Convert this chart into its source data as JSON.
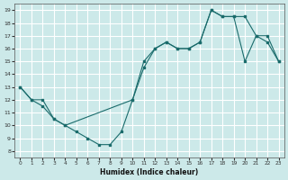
{
  "xlabel": "Humidex (Indice chaleur)",
  "xlim": [
    -0.5,
    23.5
  ],
  "ylim": [
    7.5,
    19.5
  ],
  "yticks": [
    8,
    9,
    10,
    11,
    12,
    13,
    14,
    15,
    16,
    17,
    18,
    19
  ],
  "xticks": [
    0,
    1,
    2,
    3,
    4,
    5,
    6,
    7,
    8,
    9,
    10,
    11,
    12,
    13,
    14,
    15,
    16,
    17,
    18,
    19,
    20,
    21,
    22,
    23
  ],
  "background_color": "#cce9e9",
  "grid_color": "#ffffff",
  "line_color": "#1a6b6b",
  "line1_x": [
    0,
    1,
    2,
    3,
    4,
    10,
    11,
    12,
    13,
    14,
    15,
    16,
    17,
    18,
    19,
    20,
    21,
    22,
    23
  ],
  "line1_y": [
    13,
    12,
    12,
    10.5,
    10,
    12,
    15,
    16,
    16.5,
    16,
    16,
    16.5,
    19,
    18.5,
    18.5,
    18.5,
    17,
    17,
    15
  ],
  "line2_x": [
    0,
    1,
    2,
    3,
    4,
    5,
    6,
    7,
    8,
    9,
    10,
    11,
    12,
    13,
    14,
    15,
    16,
    17,
    18,
    19,
    20,
    21,
    22,
    23
  ],
  "line2_y": [
    13,
    12,
    11.5,
    10.5,
    10,
    9.5,
    9,
    8.5,
    8.5,
    9.5,
    12,
    14.5,
    16,
    16.5,
    16,
    16,
    16.5,
    19,
    18.5,
    18.5,
    15,
    17,
    16.5,
    15
  ]
}
